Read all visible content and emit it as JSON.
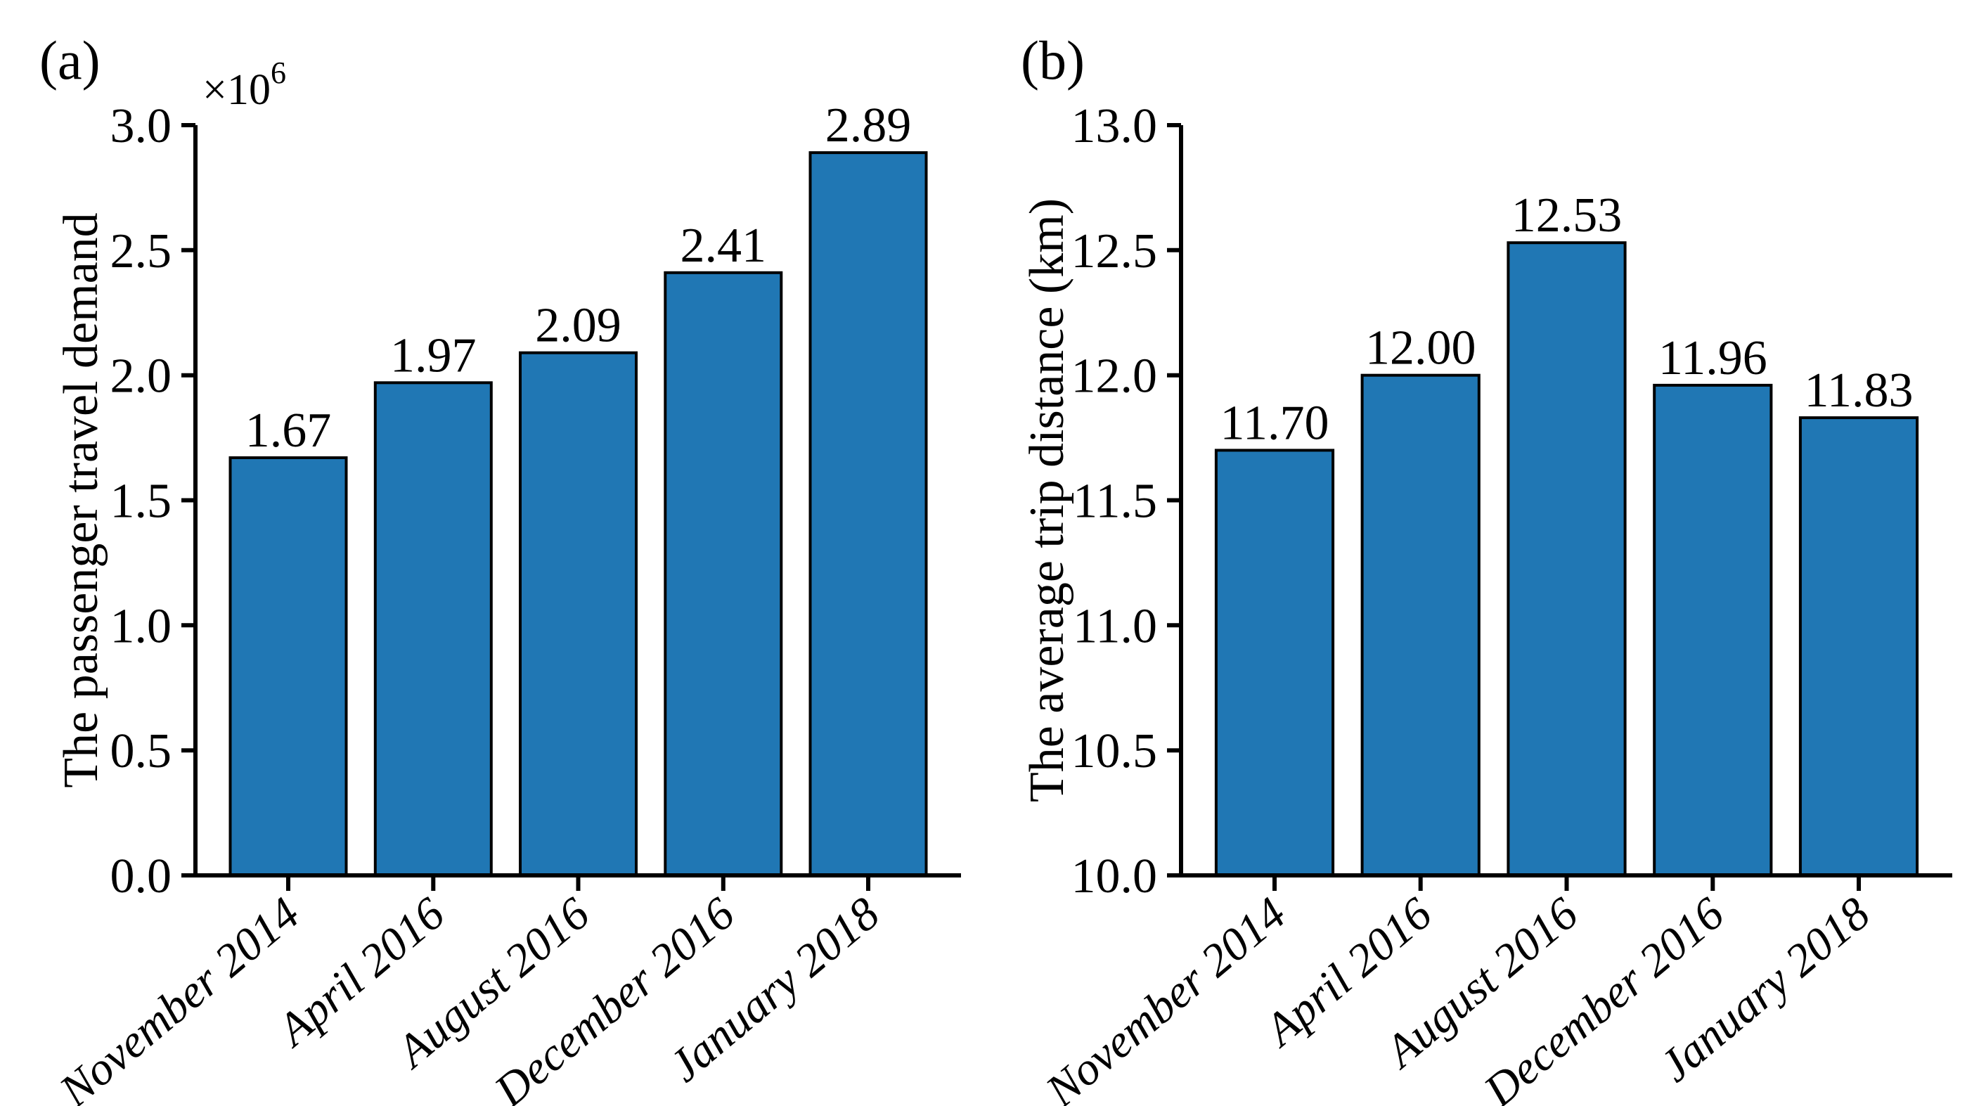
{
  "figure": {
    "background_color": "#ffffff",
    "bar_fill_color": "#2077b4",
    "bar_edge_color": "#000000",
    "axis_color": "#000000",
    "text_color": "#000000"
  },
  "chart_data": [
    {
      "type": "bar",
      "panel_label": "(a)",
      "title": "",
      "xlabel": "",
      "ylabel": "The passenger travel demand",
      "y_scale_offset_base": "×10",
      "y_scale_offset_exponent": "6",
      "unit_multiplier": 1000000,
      "categories": [
        "November 2014",
        "April 2016",
        "August 2016",
        "December 2016",
        "January 2018"
      ],
      "values": [
        1.67,
        1.97,
        2.09,
        2.41,
        2.89
      ],
      "value_labels": [
        "1.67",
        "1.97",
        "2.09",
        "2.41",
        "2.89"
      ],
      "ylim": [
        0.0,
        3.0
      ],
      "ytick_values": [
        0.0,
        0.5,
        1.0,
        1.5,
        2.0,
        2.5,
        3.0
      ],
      "ytick_labels": [
        "0.0",
        "0.5",
        "1.0",
        "1.5",
        "2.0",
        "2.5",
        "3.0"
      ],
      "xtick_rotation_deg": 40,
      "grid": false,
      "legend": null
    },
    {
      "type": "bar",
      "panel_label": "(b)",
      "title": "",
      "xlabel": "",
      "ylabel": "The average trip distance (km)",
      "y_scale_offset_base": null,
      "y_scale_offset_exponent": null,
      "unit_multiplier": 1,
      "categories": [
        "November 2014",
        "April 2016",
        "August 2016",
        "December 2016",
        "January 2018"
      ],
      "values": [
        11.7,
        12.0,
        12.53,
        11.96,
        11.83
      ],
      "value_labels": [
        "11.70",
        "12.00",
        "12.53",
        "11.96",
        "11.83"
      ],
      "ylim": [
        10.0,
        13.0
      ],
      "ytick_values": [
        10.0,
        10.5,
        11.0,
        11.5,
        12.0,
        12.5,
        13.0
      ],
      "ytick_labels": [
        "10.0",
        "10.5",
        "11.0",
        "11.5",
        "12.0",
        "12.5",
        "13.0"
      ],
      "xtick_rotation_deg": 40,
      "grid": false,
      "legend": null
    }
  ]
}
